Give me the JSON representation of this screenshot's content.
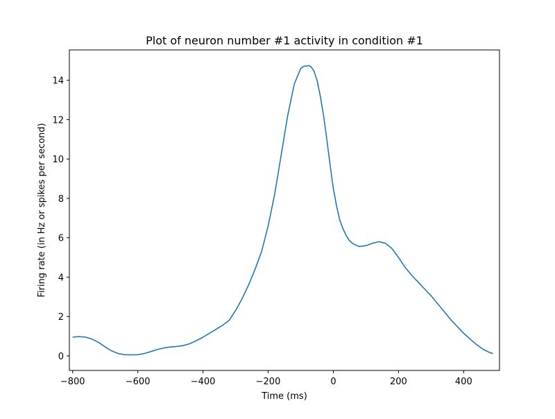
{
  "chart_data": {
    "type": "line",
    "title": "Plot of neuron number #1 activity in condition #1",
    "xlabel": "Time (ms)",
    "ylabel": "Firing rate (in Hz or spikes per second)",
    "xlim": [
      -810,
      510
    ],
    "ylim": [
      -0.74,
      15.54
    ],
    "xticks": [
      -800,
      -600,
      -400,
      -200,
      0,
      200,
      400
    ],
    "yticks": [
      0,
      2,
      4,
      6,
      8,
      10,
      12,
      14
    ],
    "grid": false,
    "series": [
      {
        "color": "#1f77b4",
        "x": [
          -800,
          -780,
          -760,
          -740,
          -720,
          -700,
          -680,
          -660,
          -640,
          -620,
          -600,
          -580,
          -560,
          -540,
          -520,
          -500,
          -480,
          -460,
          -440,
          -420,
          -400,
          -380,
          -360,
          -340,
          -320,
          -300,
          -280,
          -260,
          -240,
          -220,
          -200,
          -180,
          -160,
          -140,
          -120,
          -100,
          -90,
          -80,
          -75,
          -70,
          -60,
          -50,
          -40,
          -30,
          -20,
          -10,
          0,
          10,
          20,
          30,
          40,
          50,
          60,
          80,
          100,
          120,
          140,
          160,
          180,
          200,
          220,
          240,
          260,
          280,
          300,
          320,
          340,
          360,
          380,
          400,
          420,
          440,
          460,
          480,
          490
        ],
        "y": [
          0.95,
          0.98,
          0.95,
          0.85,
          0.68,
          0.45,
          0.25,
          0.12,
          0.06,
          0.05,
          0.06,
          0.12,
          0.22,
          0.32,
          0.4,
          0.45,
          0.48,
          0.52,
          0.62,
          0.78,
          0.95,
          1.15,
          1.35,
          1.55,
          1.8,
          2.3,
          2.9,
          3.6,
          4.4,
          5.3,
          6.6,
          8.2,
          10.2,
          12.2,
          13.8,
          14.6,
          14.72,
          14.72,
          14.75,
          14.7,
          14.5,
          14.0,
          13.2,
          12.2,
          11.0,
          9.7,
          8.5,
          7.6,
          6.9,
          6.45,
          6.1,
          5.85,
          5.7,
          5.55,
          5.6,
          5.72,
          5.8,
          5.72,
          5.45,
          5.0,
          4.5,
          4.1,
          3.75,
          3.4,
          3.05,
          2.65,
          2.25,
          1.85,
          1.5,
          1.15,
          0.85,
          0.57,
          0.33,
          0.17,
          0.12
        ]
      }
    ]
  }
}
